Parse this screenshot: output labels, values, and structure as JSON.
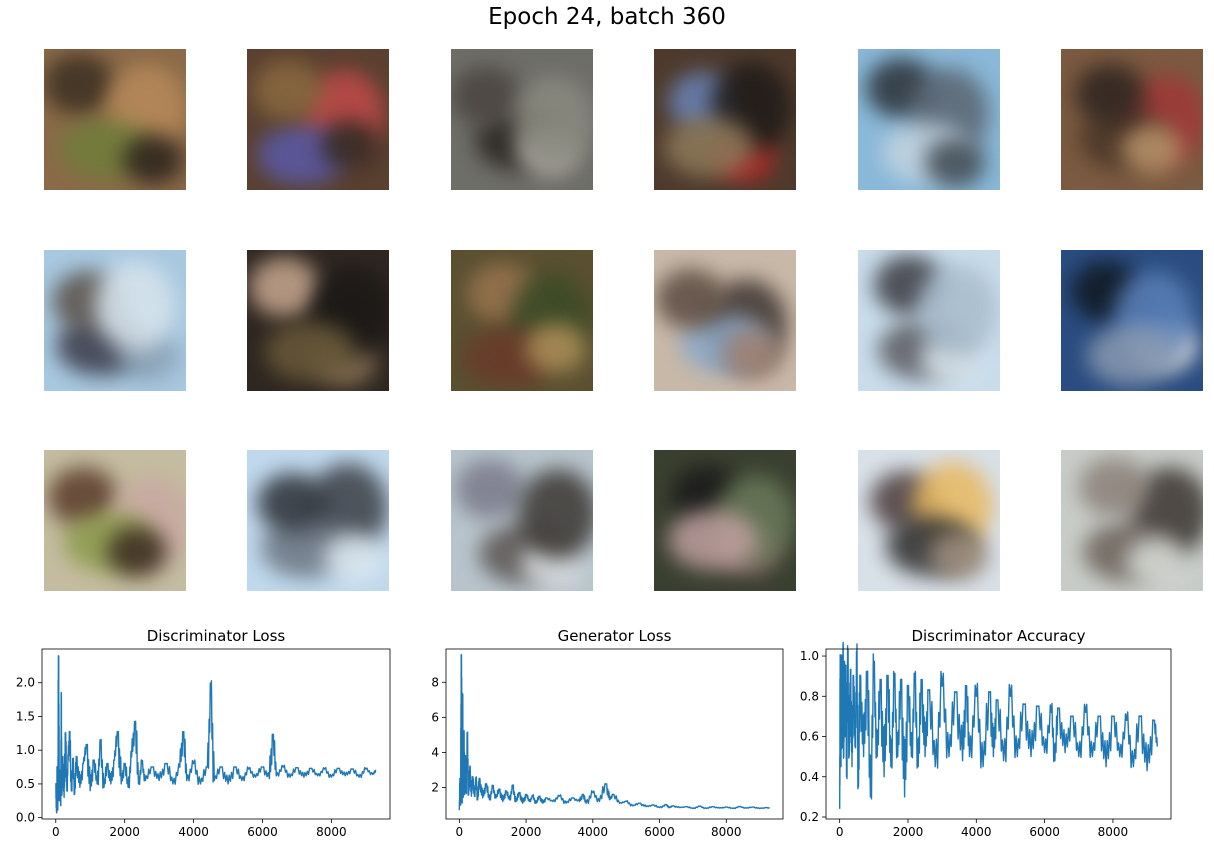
{
  "figure": {
    "title": "Epoch 24, batch 360"
  },
  "samples": [
    {
      "bg": "#8a6a48",
      "blobs": [
        "#3b2f22",
        "#b88a5a",
        "#6f7d3a",
        "#2a221c"
      ]
    },
    {
      "bg": "#5a4030",
      "blobs": [
        "#c24a4a",
        "#5a5aa8",
        "#2e2a22",
        "#8a6a40"
      ]
    },
    {
      "bg": "#6e6e68",
      "blobs": [
        "#2a2622",
        "#b8b4ac",
        "#4a4440",
        "#8a8a80"
      ]
    },
    {
      "bg": "#4e3a2c",
      "blobs": [
        "#b42a2a",
        "#6a84b8",
        "#1e1a18",
        "#8e7a5a"
      ]
    },
    {
      "bg": "#8ab8d8",
      "blobs": [
        "#2a3036",
        "#5a6470",
        "#c4d4e0",
        "#3e4850"
      ]
    },
    {
      "bg": "#7a5a40",
      "blobs": [
        "#a03838",
        "#4a3628",
        "#b8946a",
        "#2e2420"
      ]
    },
    {
      "bg": "#a8c8e0",
      "blobs": [
        "#3a3a48",
        "#8aa0b4",
        "#5a5048",
        "#d8e4ec"
      ]
    },
    {
      "bg": "#2e2620",
      "blobs": [
        "#8a7456",
        "#c8a890",
        "#1a1816",
        "#6a5a3a"
      ]
    },
    {
      "bg": "#5a5030",
      "blobs": [
        "#9a7450",
        "#3a4a26",
        "#6a3a2a",
        "#b0905a"
      ]
    },
    {
      "bg": "#c8b8a8",
      "blobs": [
        "#3e3430",
        "#8aa8c8",
        "#a08070",
        "#5a4a40"
      ]
    },
    {
      "bg": "#c8dcea",
      "blobs": [
        "#5a5a60",
        "#dce8f0",
        "#3a3a40",
        "#a8bccc"
      ]
    },
    {
      "bg": "#2a4c80",
      "blobs": [
        "#e4e4e4",
        "#101820",
        "#5a80b8",
        "#8a9ab0"
      ]
    },
    {
      "bg": "#c4bca0",
      "blobs": [
        "#5a3a2a",
        "#c8a8a0",
        "#8a9a4a",
        "#3a2a20"
      ]
    },
    {
      "bg": "#c0d8ec",
      "blobs": [
        "#3a3e44",
        "#6a7480",
        "#dce8f0",
        "#2a2e34"
      ]
    },
    {
      "bg": "#b8c4cc",
      "blobs": [
        "#5a5450",
        "#e0e4e8",
        "#7a7a8a",
        "#3a3632"
      ]
    },
    {
      "bg": "#3a4030",
      "blobs": [
        "#8a6a6a",
        "#1a1a1a",
        "#6a7a5a",
        "#c0a0a0"
      ]
    },
    {
      "bg": "#d8e0e8",
      "blobs": [
        "#4a3a3a",
        "#e8b860",
        "#2a2a2a",
        "#a09080"
      ]
    },
    {
      "bg": "#c8ccc8",
      "blobs": [
        "#3a3430",
        "#6a6058",
        "#d8dcd8",
        "#8a8078"
      ]
    }
  ],
  "chart_data": [
    {
      "type": "line",
      "title": "Discriminator Loss",
      "color": "#1f77b4",
      "xlim": [
        -400,
        9700
      ],
      "ylim": [
        -0.02,
        2.5
      ],
      "xticks": [
        {
          "v": 0,
          "label": "0"
        },
        {
          "v": 2000,
          "label": "2000"
        },
        {
          "v": 4000,
          "label": "4000"
        },
        {
          "v": 6000,
          "label": "6000"
        },
        {
          "v": 8000,
          "label": "8000"
        }
      ],
      "yticks": [
        {
          "v": 0.0,
          "label": "0.0"
        },
        {
          "v": 0.5,
          "label": "0.5"
        },
        {
          "v": 1.0,
          "label": "1.0"
        },
        {
          "v": 1.5,
          "label": "1.5"
        },
        {
          "v": 2.0,
          "label": "2.0"
        }
      ],
      "series": [
        {
          "x": [
            0,
            20,
            40,
            60,
            80,
            100,
            120,
            140,
            160,
            180,
            200,
            240,
            280,
            320,
            360,
            400,
            450,
            500,
            550,
            600,
            700,
            800,
            900,
            1000,
            1100,
            1200,
            1300,
            1400,
            1500,
            1600,
            1700,
            1800,
            1900,
            2000,
            2100,
            2200,
            2300,
            2400,
            2500,
            2600,
            2800,
            3000,
            3200,
            3400,
            3600,
            3700,
            3800,
            4000,
            4200,
            4400,
            4500,
            4600,
            4800,
            5000,
            5200,
            5400,
            5600,
            5800,
            6000,
            6200,
            6300,
            6400,
            6600,
            6800,
            7000,
            7200,
            7400,
            7600,
            7800,
            8000,
            8200,
            8400,
            8600,
            8800,
            9000,
            9200,
            9300
          ],
          "y": [
            0.5,
            0.08,
            0.65,
            0.12,
            2.38,
            0.25,
            0.7,
            0.2,
            1.6,
            0.35,
            0.9,
            0.3,
            1.25,
            0.4,
            0.85,
            1.27,
            0.4,
            0.8,
            0.35,
            0.9,
            0.45,
            0.8,
            1.08,
            0.4,
            0.85,
            0.5,
            1.05,
            0.45,
            0.8,
            0.5,
            0.85,
            1.27,
            0.5,
            0.8,
            0.45,
            0.9,
            1.42,
            0.5,
            0.8,
            0.55,
            0.75,
            0.55,
            0.8,
            0.5,
            0.75,
            1.27,
            0.55,
            0.8,
            0.5,
            0.75,
            1.8,
            0.55,
            0.75,
            0.5,
            0.75,
            0.55,
            0.72,
            0.6,
            0.75,
            0.58,
            1.23,
            0.62,
            0.75,
            0.6,
            0.74,
            0.6,
            0.73,
            0.62,
            0.72,
            0.6,
            0.73,
            0.62,
            0.72,
            0.6,
            0.72,
            0.64,
            0.7
          ]
        }
      ]
    },
    {
      "type": "line",
      "title": "Generator Loss",
      "color": "#1f77b4",
      "xlim": [
        -400,
        9700
      ],
      "ylim": [
        0.2,
        9.9
      ],
      "xticks": [
        {
          "v": 0,
          "label": "0"
        },
        {
          "v": 2000,
          "label": "2000"
        },
        {
          "v": 4000,
          "label": "4000"
        },
        {
          "v": 6000,
          "label": "6000"
        },
        {
          "v": 8000,
          "label": "8000"
        }
      ],
      "yticks": [
        {
          "v": 2,
          "label": "2"
        },
        {
          "v": 4,
          "label": "4"
        },
        {
          "v": 6,
          "label": "6"
        },
        {
          "v": 8,
          "label": "8"
        }
      ],
      "series": [
        {
          "x": [
            0,
            20,
            40,
            60,
            80,
            100,
            120,
            140,
            160,
            180,
            200,
            240,
            280,
            320,
            360,
            400,
            450,
            500,
            550,
            600,
            700,
            800,
            900,
            1000,
            1100,
            1200,
            1300,
            1400,
            1500,
            1600,
            1700,
            1800,
            1900,
            2000,
            2100,
            2200,
            2300,
            2400,
            2500,
            2600,
            2800,
            3000,
            3200,
            3400,
            3600,
            3700,
            3800,
            4000,
            4200,
            4400,
            4500,
            4600,
            4800,
            5000,
            5200,
            5400,
            5600,
            5800,
            6000,
            6200,
            6300,
            6400,
            6600,
            6800,
            7000,
            7200,
            7400,
            7600,
            7800,
            8000,
            8200,
            8400,
            8600,
            8800,
            9000,
            9200,
            9300
          ],
          "y": [
            0.7,
            2.5,
            1.0,
            9.5,
            1.2,
            6.4,
            1.5,
            5.2,
            1.6,
            3.8,
            1.7,
            4.6,
            1.6,
            3.2,
            1.5,
            2.6,
            1.5,
            2.4,
            1.3,
            2.5,
            1.4,
            2.2,
            1.3,
            2.0,
            1.4,
            1.9,
            1.2,
            1.8,
            1.3,
            2.0,
            1.2,
            1.7,
            1.1,
            1.6,
            1.2,
            1.5,
            1.1,
            1.5,
            1.1,
            1.4,
            1.2,
            1.5,
            1.1,
            1.4,
            1.2,
            1.6,
            1.1,
            1.7,
            1.2,
            2.2,
            1.3,
            1.6,
            1.1,
            1.2,
            0.95,
            1.1,
            0.9,
            1.0,
            0.85,
            1.0,
            0.85,
            0.95,
            0.85,
            0.9,
            0.8,
            0.92,
            0.8,
            0.9,
            0.82,
            0.88,
            0.8,
            0.9,
            0.82,
            0.88,
            0.8,
            0.85,
            0.82
          ]
        }
      ]
    },
    {
      "type": "line",
      "title": "Discriminator Accuracy",
      "color": "#1f77b4",
      "xlim": [
        -400,
        9700
      ],
      "ylim": [
        0.19,
        1.035
      ],
      "xticks": [
        {
          "v": 0,
          "label": "0"
        },
        {
          "v": 2000,
          "label": "2000"
        },
        {
          "v": 4000,
          "label": "4000"
        },
        {
          "v": 6000,
          "label": "6000"
        },
        {
          "v": 8000,
          "label": "8000"
        }
      ],
      "yticks": [
        {
          "v": 0.2,
          "label": "0.2"
        },
        {
          "v": 0.4,
          "label": "0.4"
        },
        {
          "v": 0.6,
          "label": "0.6"
        },
        {
          "v": 0.8,
          "label": "0.8"
        },
        {
          "v": 1.0,
          "label": "1.0"
        }
      ],
      "series": [
        {
          "x": [
            0,
            20,
            40,
            60,
            80,
            100,
            120,
            140,
            160,
            180,
            200,
            240,
            280,
            320,
            360,
            400,
            450,
            500,
            550,
            600,
            700,
            800,
            900,
            1000,
            1100,
            1200,
            1300,
            1400,
            1500,
            1600,
            1700,
            1800,
            1900,
            2000,
            2100,
            2200,
            2300,
            2400,
            2500,
            2600,
            2800,
            3000,
            3200,
            3400,
            3600,
            3700,
            3800,
            4000,
            4200,
            4400,
            4500,
            4600,
            4800,
            5000,
            5200,
            5400,
            5600,
            5800,
            6000,
            6200,
            6300,
            6400,
            6600,
            6800,
            7000,
            7200,
            7400,
            7600,
            7800,
            8000,
            8200,
            8400,
            8600,
            8800,
            9000,
            9200,
            9300
          ],
          "y": [
            0.24,
            1.0,
            0.45,
            1.0,
            0.55,
            0.98,
            0.5,
            0.97,
            0.6,
            0.95,
            0.4,
            0.95,
            0.5,
            0.93,
            0.45,
            0.9,
            0.55,
            0.95,
            0.35,
            0.9,
            0.5,
            0.92,
            0.3,
            0.9,
            0.5,
            0.88,
            0.4,
            0.9,
            0.45,
            0.85,
            0.5,
            0.88,
            0.3,
            0.85,
            0.5,
            0.85,
            0.45,
            0.88,
            0.5,
            0.83,
            0.45,
            0.85,
            0.5,
            0.82,
            0.48,
            0.85,
            0.5,
            0.8,
            0.45,
            0.82,
            0.5,
            0.78,
            0.48,
            0.8,
            0.5,
            0.76,
            0.5,
            0.75,
            0.52,
            0.72,
            0.48,
            0.74,
            0.52,
            0.7,
            0.5,
            0.72,
            0.5,
            0.7,
            0.45,
            0.7,
            0.5,
            0.68,
            0.45,
            0.7,
            0.43,
            0.68,
            0.55
          ]
        }
      ]
    }
  ]
}
